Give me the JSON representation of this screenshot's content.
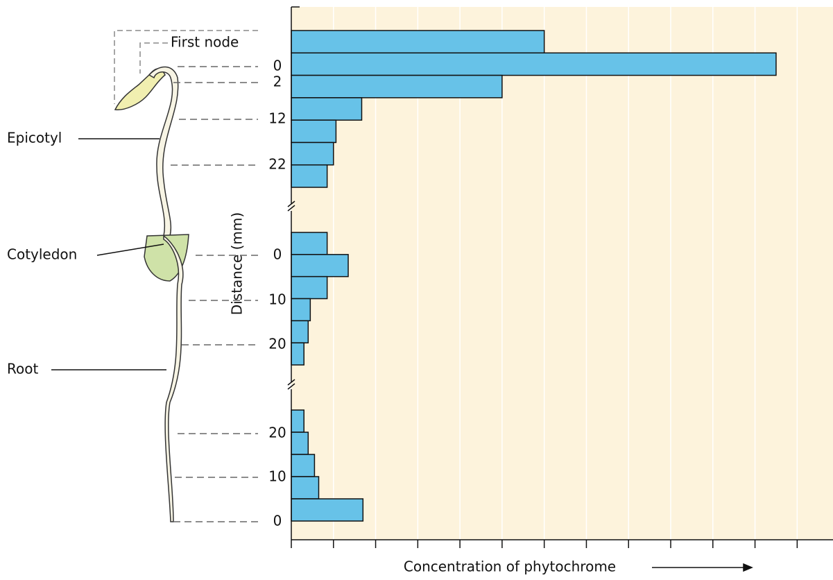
{
  "chart_data": {
    "type": "bar",
    "orientation": "horizontal",
    "x_label": "Concentration of phytochrome",
    "y_label": "Distance (mm)",
    "xlim": [
      0,
      12.85
    ],
    "xticks": [
      0,
      1,
      2,
      3,
      4,
      5,
      6,
      7,
      8,
      9,
      10,
      11,
      12
    ],
    "color": "#67c2e8",
    "grid": true,
    "sections": [
      {
        "yticks": [
          0,
          2,
          12,
          22
        ],
        "values": [
          6.0,
          11.5,
          5.0,
          1.67,
          1.06,
          1.0,
          0.85
        ]
      },
      {
        "yticks": [
          0,
          10,
          20
        ],
        "values": [
          0.85,
          1.35,
          0.85,
          0.45,
          0.4,
          0.3
        ]
      },
      {
        "yticks": [
          20,
          10,
          0
        ],
        "values": [
          0.3,
          0.4,
          0.55,
          0.65,
          1.7
        ]
      }
    ],
    "annotations": [
      "First node",
      "Epicotyl",
      "Cotyledon",
      "Root"
    ]
  }
}
